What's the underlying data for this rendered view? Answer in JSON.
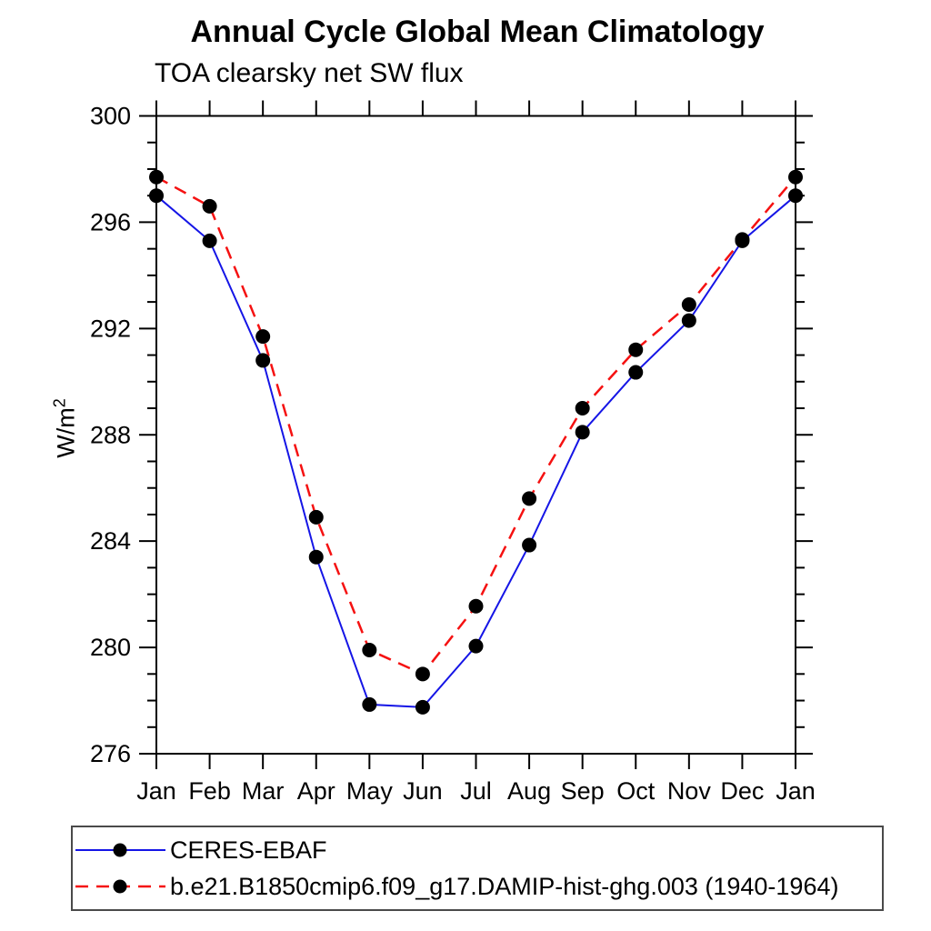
{
  "title": "Annual Cycle Global Mean Climatology",
  "subtitle": "TOA clearsky net SW flux",
  "ylabel": {
    "base": "W/m",
    "sup": "2"
  },
  "colors": {
    "obs_line": "#1515e6",
    "model_line": "#f51111",
    "marker": "#000000",
    "axis": "#000000"
  },
  "legend": {
    "entries": [
      {
        "label": "CERES-EBAF",
        "color": "#1515e6",
        "style": "solid"
      },
      {
        "label": "b.e21.B1850cmip6.f09_g17.DAMIP-hist-ghg.003 (1940-1964)",
        "color": "#f51111",
        "style": "dashed"
      }
    ]
  },
  "chart_data": {
    "type": "line",
    "title": "Annual Cycle Global Mean Climatology",
    "subtitle": "TOA clearsky net SW flux",
    "ylabel": "W/m2",
    "x_tick_labels": [
      "Jan",
      "Feb",
      "Mar",
      "Apr",
      "May",
      "Jun",
      "Jul",
      "Aug",
      "Sep",
      "Oct",
      "Nov",
      "Dec",
      "Jan"
    ],
    "ylim": [
      276,
      300
    ],
    "y_major_ticks": [
      276,
      280,
      284,
      288,
      292,
      296,
      300
    ],
    "y_minor_step": 1,
    "grid": false,
    "legend_position": "bottom",
    "series": [
      {
        "name": "CERES-EBAF",
        "color": "#1515e6",
        "line_style": "solid",
        "marker": "filled-circle",
        "values": [
          297.0,
          295.3,
          290.8,
          283.4,
          277.85,
          277.75,
          280.05,
          283.85,
          288.1,
          290.35,
          292.3,
          295.3,
          297.0
        ]
      },
      {
        "name": "b.e21.B1850cmip6.f09_g17.DAMIP-hist-ghg.003 (1940-1964)",
        "color": "#f51111",
        "line_style": "dashed",
        "marker": "filled-circle",
        "values": [
          297.7,
          296.6,
          291.7,
          284.9,
          279.9,
          279.0,
          281.55,
          285.6,
          289.0,
          291.2,
          292.9,
          295.35,
          297.7
        ]
      }
    ]
  }
}
